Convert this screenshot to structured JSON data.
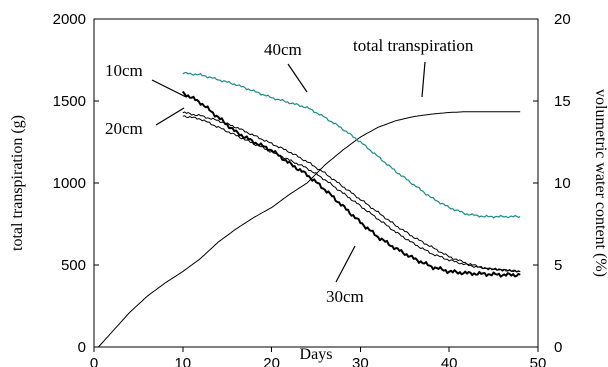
{
  "chart_data": {
    "type": "line",
    "xlabel": "Days",
    "ylabel": "total transpiration (g)",
    "y2label": "volumetric water content (%)",
    "xlim": [
      0,
      50
    ],
    "ylim": [
      0,
      2000
    ],
    "y2lim": [
      0,
      20
    ],
    "xticks": [
      "0",
      "10",
      "20",
      "30",
      "40",
      "50"
    ],
    "yticks": [
      "0",
      "500",
      "1000",
      "1500",
      "2000"
    ],
    "y2ticks": [
      "0",
      "5",
      "10",
      "15",
      "20"
    ],
    "grid": false,
    "legend": "none",
    "annotations": {
      "total": "total transpiration",
      "d40": "40cm",
      "d10": "10cm",
      "d20": "20cm",
      "d30": "30cm"
    },
    "series": [
      {
        "axis": "left",
        "color": "#000000",
        "x": [
          0.5,
          2,
          4,
          6,
          8,
          10,
          12,
          14,
          16,
          18,
          20,
          22,
          24,
          26,
          28,
          30,
          32,
          34,
          36,
          38,
          40,
          42,
          44,
          46,
          48
        ],
        "values": [
          0,
          90,
          210,
          310,
          390,
          460,
          540,
          640,
          720,
          790,
          850,
          930,
          1000,
          1110,
          1200,
          1280,
          1340,
          1380,
          1405,
          1420,
          1430,
          1435,
          1435,
          1435,
          1435
        ]
      },
      {
        "axis": "right",
        "color": "#1a8a8a",
        "x": [
          10,
          12,
          14,
          16,
          18,
          20,
          22,
          24,
          26,
          28,
          30,
          32,
          34,
          36,
          38,
          40,
          42,
          44,
          46,
          48
        ],
        "values": [
          16.7,
          16.6,
          16.3,
          16.0,
          15.6,
          15.2,
          14.9,
          14.6,
          14.0,
          13.3,
          12.5,
          11.6,
          10.7,
          9.9,
          9.1,
          8.5,
          8.1,
          7.95,
          7.95,
          7.95
        ]
      },
      {
        "axis": "right",
        "color": "#000000",
        "x": [
          10,
          12,
          14,
          16,
          18,
          20,
          22,
          24,
          26,
          28,
          30,
          32,
          34,
          36,
          38,
          40,
          42,
          44,
          46,
          48
        ],
        "values": [
          14.1,
          13.9,
          13.4,
          12.9,
          12.4,
          11.9,
          11.4,
          10.9,
          10.2,
          9.4,
          8.6,
          7.8,
          7.0,
          6.3,
          5.7,
          5.3,
          5.0,
          4.8,
          4.7,
          4.6
        ]
      },
      {
        "axis": "right",
        "color": "#000000",
        "x": [
          10,
          12,
          14,
          16,
          18,
          20,
          22,
          24,
          26,
          28,
          30,
          32,
          34,
          36,
          38,
          40,
          42,
          44,
          46,
          48
        ],
        "values": [
          14.3,
          14.1,
          13.8,
          13.4,
          12.9,
          12.4,
          11.9,
          11.3,
          10.6,
          9.8,
          9.0,
          8.2,
          7.4,
          6.7,
          6.1,
          5.5,
          5.1,
          4.8,
          4.7,
          4.6
        ]
      },
      {
        "axis": "right",
        "color": "#000000",
        "x": [
          10,
          12,
          14,
          16,
          18,
          20,
          22,
          24,
          26,
          28,
          30,
          32,
          34,
          36,
          38,
          40,
          42,
          44,
          46,
          48
        ],
        "values": [
          15.5,
          14.9,
          14.0,
          13.1,
          12.5,
          12.0,
          11.2,
          10.5,
          9.6,
          8.6,
          7.6,
          6.7,
          6.0,
          5.4,
          4.9,
          4.6,
          4.5,
          4.45,
          4.4,
          4.4
        ]
      }
    ]
  }
}
